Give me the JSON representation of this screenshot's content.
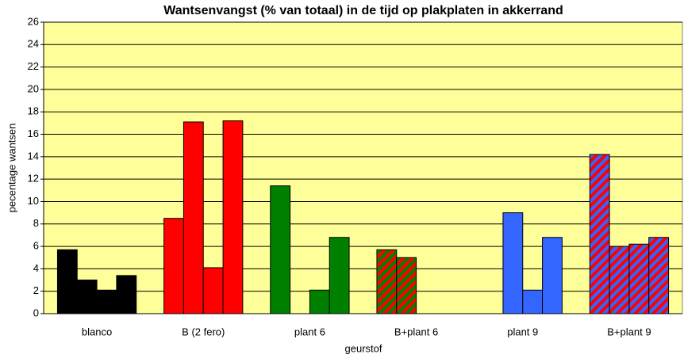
{
  "chart_data": {
    "type": "bar",
    "title": "Wantsenvangst (% van totaal) in de tijd op plakplaten in akkerrand",
    "xlabel": "geurstof",
    "ylabel": "pecentage wantsen",
    "categories": [
      "blanco",
      "B (2 fero)",
      "plant 6",
      "B+plant 6",
      "plant 9",
      "B+plant 9"
    ],
    "category_colors": [
      {
        "fill": "#000000"
      },
      {
        "fill": "#ff0000"
      },
      {
        "fill": "#008000"
      },
      {
        "fill": "#ff0000",
        "stripe": "#008000"
      },
      {
        "fill": "#3366ff"
      },
      {
        "fill": "#ff0000",
        "stripe": "#3366ff"
      }
    ],
    "series": [
      {
        "values": [
          5.7,
          8.5,
          11.4,
          5.7,
          null,
          14.2
        ]
      },
      {
        "values": [
          3.0,
          17.1,
          null,
          5.0,
          9.0,
          6.0
        ]
      },
      {
        "values": [
          2.1,
          4.1,
          2.1,
          null,
          2.1,
          6.2
        ]
      },
      {
        "values": [
          3.4,
          17.2,
          6.8,
          null,
          6.8,
          6.8
        ]
      }
    ],
    "ylim": [
      0,
      26
    ],
    "yticks": [
      0,
      2,
      4,
      6,
      8,
      10,
      12,
      14,
      16,
      18,
      20,
      22,
      24,
      26
    ],
    "grid": true,
    "plot_background": "#ffff99"
  }
}
